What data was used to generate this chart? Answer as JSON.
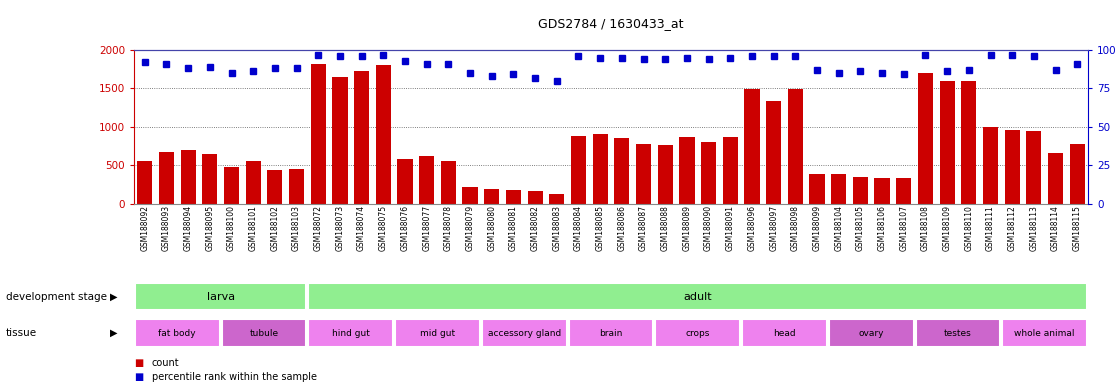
{
  "title": "GDS2784 / 1630433_at",
  "samples": [
    "GSM188092",
    "GSM188093",
    "GSM188094",
    "GSM188095",
    "GSM188100",
    "GSM188101",
    "GSM188102",
    "GSM188103",
    "GSM188072",
    "GSM188073",
    "GSM188074",
    "GSM188075",
    "GSM188076",
    "GSM188077",
    "GSM188078",
    "GSM188079",
    "GSM188080",
    "GSM188081",
    "GSM188082",
    "GSM188083",
    "GSM188084",
    "GSM188085",
    "GSM188086",
    "GSM188087",
    "GSM188088",
    "GSM188089",
    "GSM188090",
    "GSM188091",
    "GSM188096",
    "GSM188097",
    "GSM188098",
    "GSM188099",
    "GSM188104",
    "GSM188105",
    "GSM188106",
    "GSM188107",
    "GSM188108",
    "GSM188109",
    "GSM188110",
    "GSM188111",
    "GSM188112",
    "GSM188113",
    "GSM188114",
    "GSM188115"
  ],
  "counts": [
    560,
    670,
    700,
    640,
    470,
    550,
    430,
    450,
    1820,
    1650,
    1720,
    1800,
    580,
    620,
    560,
    210,
    190,
    180,
    165,
    125,
    880,
    910,
    850,
    780,
    760,
    870,
    800,
    870,
    1490,
    1340,
    1490,
    380,
    380,
    340,
    330,
    330,
    1700,
    1600,
    1600,
    1000,
    960,
    940,
    660,
    780
  ],
  "percentiles": [
    92,
    91,
    88,
    89,
    85,
    86,
    88,
    88,
    97,
    96,
    96,
    97,
    93,
    91,
    91,
    85,
    83,
    84,
    82,
    80,
    96,
    95,
    95,
    94,
    94,
    95,
    94,
    95,
    96,
    96,
    96,
    87,
    85,
    86,
    85,
    84,
    97,
    86,
    87,
    97,
    97,
    96,
    87,
    91
  ],
  "bar_color": "#cc0000",
  "dot_color": "#0000cc",
  "ylim_left": [
    0,
    2000
  ],
  "ylim_right": [
    0,
    100
  ],
  "yticks_left": [
    0,
    500,
    1000,
    1500,
    2000
  ],
  "yticks_right": [
    0,
    25,
    50,
    75,
    100
  ],
  "plot_bg": "#ffffff",
  "tick_bg": "#d8d8d8",
  "fig_bg": "#ffffff",
  "dev_stages": [
    {
      "label": "larva",
      "start": 0,
      "end": 8,
      "color": "#90ee90"
    },
    {
      "label": "adult",
      "start": 8,
      "end": 44,
      "color": "#90ee90"
    }
  ],
  "tissues": [
    {
      "label": "fat body",
      "start": 0,
      "end": 4,
      "color": "#ee82ee"
    },
    {
      "label": "tubule",
      "start": 4,
      "end": 8,
      "color": "#cc66cc"
    },
    {
      "label": "hind gut",
      "start": 8,
      "end": 12,
      "color": "#ee82ee"
    },
    {
      "label": "mid gut",
      "start": 12,
      "end": 16,
      "color": "#ee82ee"
    },
    {
      "label": "accessory gland",
      "start": 16,
      "end": 20,
      "color": "#ee82ee"
    },
    {
      "label": "brain",
      "start": 20,
      "end": 24,
      "color": "#ee82ee"
    },
    {
      "label": "crops",
      "start": 24,
      "end": 28,
      "color": "#ee82ee"
    },
    {
      "label": "head",
      "start": 28,
      "end": 32,
      "color": "#ee82ee"
    },
    {
      "label": "ovary",
      "start": 32,
      "end": 36,
      "color": "#cc66cc"
    },
    {
      "label": "testes",
      "start": 36,
      "end": 40,
      "color": "#cc66cc"
    },
    {
      "label": "whole animal",
      "start": 40,
      "end": 44,
      "color": "#ee82ee"
    }
  ],
  "legend_count_label": "count",
  "legend_pct_label": "percentile rank within the sample",
  "dev_stage_label": "development stage",
  "tissue_label": "tissue",
  "grid_levels": [
    500,
    1000,
    1500
  ]
}
